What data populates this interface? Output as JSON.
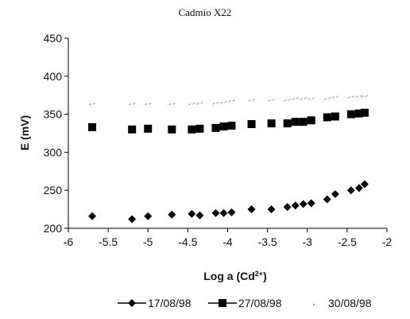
{
  "chart_data": {
    "type": "scatter",
    "title": "Cadmio X22",
    "xlim": [
      -6,
      -2
    ],
    "ylim": [
      200,
      450
    ],
    "x_ticks": [
      "-6",
      "-5.5",
      "-5",
      "-4.5",
      "-4",
      "-3.5",
      "-3",
      "-2.5",
      "-2"
    ],
    "y_ticks": [
      "200",
      "250",
      "300",
      "350",
      "400",
      "450"
    ],
    "grid": false,
    "legend_position": "bottom",
    "series": [
      {
        "name": "17/08/98",
        "marker": "diamond",
        "color": "#000000",
        "x": [
          -5.7,
          -5.2,
          -5.0,
          -4.7,
          -4.45,
          -4.35,
          -4.15,
          -4.05,
          -3.95,
          -3.7,
          -3.45,
          -3.25,
          -3.15,
          -3.05,
          -2.95,
          -2.75,
          -2.65,
          -2.45,
          -2.35,
          -2.28
        ],
        "y": [
          216,
          212,
          216,
          218,
          219,
          217,
          220,
          220,
          221,
          225,
          225,
          228,
          230,
          232,
          233,
          238,
          245,
          250,
          253,
          258
        ]
      },
      {
        "name": "27/08/98",
        "marker": "square",
        "color": "#000000",
        "x": [
          -5.7,
          -5.2,
          -5.0,
          -4.7,
          -4.45,
          -4.35,
          -4.15,
          -4.05,
          -3.95,
          -3.7,
          -3.45,
          -3.25,
          -3.15,
          -3.05,
          -2.95,
          -2.75,
          -2.65,
          -2.45,
          -2.35,
          -2.28
        ],
        "y": [
          333,
          330,
          331,
          330,
          330,
          331,
          332,
          334,
          335,
          337,
          338,
          338,
          340,
          340,
          342,
          346,
          347,
          350,
          351,
          352
        ]
      },
      {
        "name": "30/08/98",
        "marker": "faint",
        "color": "#9a9a9a",
        "x": [
          -5.7,
          -5.2,
          -5.0,
          -4.7,
          -4.45,
          -4.35,
          -4.15,
          -4.05,
          -3.95,
          -3.7,
          -3.45,
          -3.25,
          -3.15,
          -3.05,
          -2.95,
          -2.75,
          -2.65,
          -2.45,
          -2.35,
          -2.28
        ],
        "y": [
          363,
          363,
          363,
          363,
          363,
          364,
          364,
          365,
          367,
          368,
          368,
          368,
          370,
          370,
          370,
          370,
          372,
          372,
          373,
          373
        ]
      }
    ]
  }
}
